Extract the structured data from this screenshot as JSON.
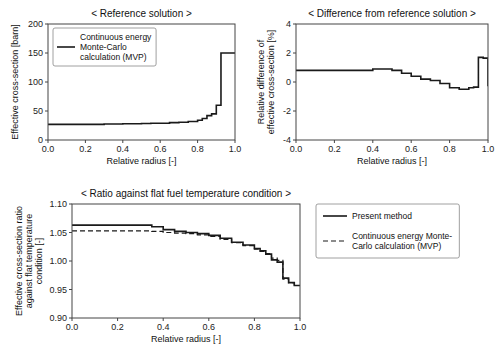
{
  "chart_data": [
    {
      "type": "step",
      "title": "< Reference solution >",
      "x_label": "Relative radius [-]",
      "y_label": "Effective cross-section [barn]",
      "x": [
        0.0,
        0.05,
        0.1,
        0.15,
        0.2,
        0.25,
        0.3,
        0.35,
        0.4,
        0.45,
        0.5,
        0.55,
        0.6,
        0.65,
        0.7,
        0.75,
        0.8,
        0.825,
        0.85,
        0.875,
        0.9,
        0.925,
        0.95,
        0.975,
        1.0
      ],
      "series": [
        {
          "name": "Continuous energy\nMonte-Carlo\ncalculation (MVP)",
          "color": "#1a1a1a",
          "line_style": "solid",
          "values": [
            27,
            27,
            27,
            27,
            27,
            27,
            27.5,
            27.5,
            28,
            28,
            28.5,
            29,
            29,
            30,
            30.5,
            32,
            34,
            37,
            42,
            45,
            60,
            150,
            150,
            150,
            150
          ]
        }
      ],
      "xlim": [
        0.0,
        1.0
      ],
      "ylim": [
        0,
        200
      ],
      "xticks": [
        {
          "value": 0,
          "label": "0.0"
        },
        0.2,
        0.4,
        0.6,
        0.8,
        {
          "value": 1,
          "label": "1.0"
        }
      ],
      "yticks": [
        0,
        50,
        100,
        150,
        200
      ],
      "legend": "upper left",
      "grid": false
    },
    {
      "type": "step",
      "title": "< Difference from reference solution >",
      "x_label": "Relative radius [-]",
      "y_label": "Relative difference of\neffective cross-section [%]",
      "x": [
        0.0,
        0.1,
        0.2,
        0.3,
        0.4,
        0.45,
        0.5,
        0.55,
        0.6,
        0.65,
        0.7,
        0.75,
        0.8,
        0.85,
        0.9,
        0.925,
        0.95,
        0.975,
        1.0
      ],
      "series": [
        {
          "color": "#1a1a1a",
          "line_style": "solid",
          "values": [
            0.8,
            0.8,
            0.8,
            0.8,
            0.9,
            0.9,
            0.8,
            0.6,
            0.4,
            0.2,
            0.1,
            -0.1,
            -0.4,
            -0.5,
            -0.4,
            -0.35,
            1.7,
            1.65,
            -0.3
          ]
        }
      ],
      "xlim": [
        0.0,
        1.0
      ],
      "ylim": [
        -4,
        4
      ],
      "xticks": [
        {
          "value": 0,
          "label": "0.0"
        },
        0.2,
        0.4,
        0.6,
        0.8,
        {
          "value": 1,
          "label": "1.0"
        }
      ],
      "yticks": [
        -4,
        -2,
        0,
        2,
        4
      ],
      "grid": false
    },
    {
      "type": "step",
      "title": "< Ratio against flat fuel temperature condition >",
      "x_label": "Relative radius [-]",
      "y_label": "Effective cross-section ratio\nagainst flat temperature\ncondition [-]",
      "x": [
        0.0,
        0.3,
        0.35,
        0.4,
        0.45,
        0.5,
        0.55,
        0.6,
        0.65,
        0.7,
        0.75,
        0.8,
        0.825,
        0.85,
        0.875,
        0.9,
        0.925,
        0.95,
        0.975,
        1.0
      ],
      "series": [
        {
          "name": "Present method",
          "color": "#1a1a1a",
          "line_style": "solid",
          "values": [
            1.063,
            1.063,
            1.06,
            1.055,
            1.052,
            1.05,
            1.048,
            1.045,
            1.04,
            1.033,
            1.028,
            1.022,
            1.018,
            1.012,
            1.002,
            0.998,
            0.97,
            0.962,
            0.957,
            0.957
          ]
        },
        {
          "name": "Continuous energy Monte-\nCarlo calculation (MVP)",
          "color": "#1a1a1a",
          "line_style": "dashed",
          "values": [
            1.053,
            1.053,
            1.052,
            1.05,
            1.049,
            1.048,
            1.046,
            1.043,
            1.038,
            1.032,
            1.027,
            1.021,
            1.017,
            1.013,
            1.005,
            1.001,
            0.968,
            0.962,
            0.957,
            0.957
          ]
        }
      ],
      "xlim": [
        0.0,
        1.0
      ],
      "ylim": [
        0.9,
        1.1
      ],
      "xticks": [
        {
          "value": 0,
          "label": "0.0"
        },
        0.2,
        0.4,
        0.6,
        0.8,
        {
          "value": 1,
          "label": "1.0"
        }
      ],
      "yticks": [
        {
          "value": 0.9,
          "label": "0.90"
        },
        {
          "value": 0.95,
          "label": "0.95"
        },
        {
          "value": 1.0,
          "label": "1.00"
        },
        {
          "value": 1.05,
          "label": "1.05"
        },
        {
          "value": 1.1,
          "label": "1.10"
        }
      ],
      "legend": "right",
      "grid": false
    }
  ]
}
